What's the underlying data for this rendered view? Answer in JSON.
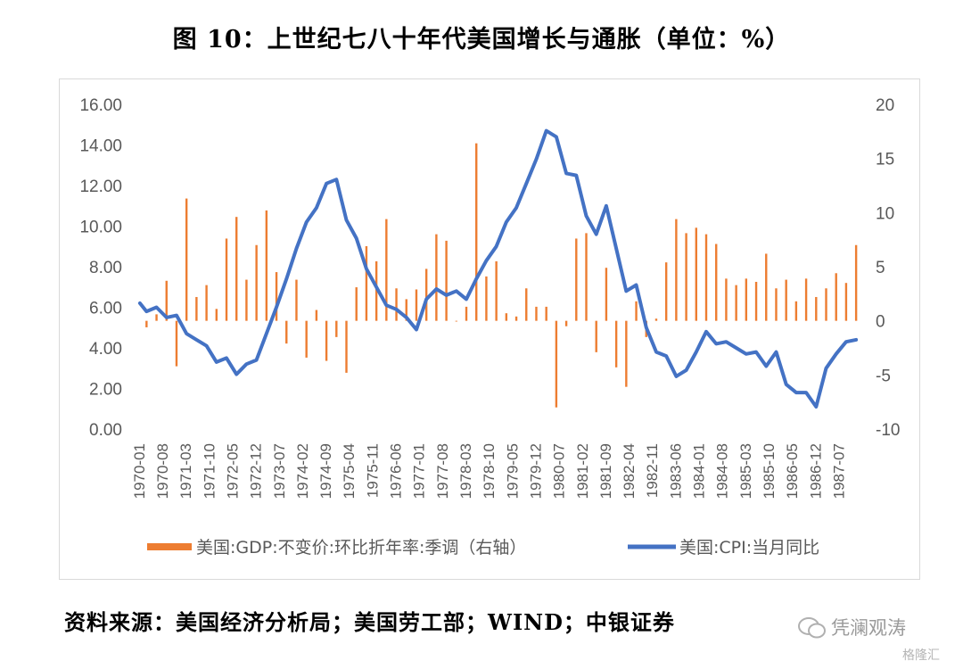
{
  "title": "图 10：上世纪七八十年代美国增长与通胀（单位：%）",
  "source": "资料来源：美国经济分析局；美国劳工部；WIND；中银证券",
  "watermark": "凭澜观涛",
  "watermark_site": "格隆汇",
  "colors": {
    "gdp": "#ED7D31",
    "cpi": "#4472C4",
    "axis_text": "#595959",
    "frame": "#d9d9d9"
  },
  "chart_data": {
    "type": "bar+line",
    "title": "",
    "xlabel": "",
    "ylabel": "",
    "left_axis": {
      "min": 0,
      "max": 16,
      "ticks": [
        "0.00",
        "2.00",
        "4.00",
        "6.00",
        "8.00",
        "10.00",
        "12.00",
        "14.00",
        "16.00"
      ]
    },
    "right_axis": {
      "min": -10,
      "max": 20,
      "ticks": [
        "-10",
        "-5",
        "0",
        "5",
        "10",
        "15",
        "20"
      ]
    },
    "x_ticks": [
      "1970-01",
      "1970-08",
      "1971-03",
      "1971-10",
      "1972-05",
      "1972-12",
      "1973-07",
      "1974-02",
      "1974-09",
      "1975-04",
      "1975-11",
      "1976-06",
      "1977-01",
      "1977-08",
      "1978-03",
      "1978-10",
      "1979-05",
      "1979-12",
      "1980-07",
      "1981-02",
      "1981-09",
      "1982-04",
      "1982-11",
      "1983-06",
      "1984-01",
      "1984-08",
      "1985-03",
      "1985-10",
      "1986-05",
      "1986-12",
      "1987-07"
    ],
    "x_start": "1970-01",
    "x_end": "1987-12",
    "legend_position": "bottom",
    "series": [
      {
        "name": "美国:GDP:不变价:环比折年率:季调（右轴）",
        "type": "bar",
        "axis": "right",
        "x": [
          "1970-03",
          "1970-06",
          "1970-09",
          "1970-12",
          "1971-03",
          "1971-06",
          "1971-09",
          "1971-12",
          "1972-03",
          "1972-06",
          "1972-09",
          "1972-12",
          "1973-03",
          "1973-06",
          "1973-09",
          "1973-12",
          "1974-03",
          "1974-06",
          "1974-09",
          "1974-12",
          "1975-03",
          "1975-06",
          "1975-09",
          "1975-12",
          "1976-03",
          "1976-06",
          "1976-09",
          "1976-12",
          "1977-03",
          "1977-06",
          "1977-09",
          "1977-12",
          "1978-03",
          "1978-06",
          "1978-09",
          "1978-12",
          "1979-03",
          "1979-06",
          "1979-09",
          "1979-12",
          "1980-03",
          "1980-06",
          "1980-09",
          "1980-12",
          "1981-03",
          "1981-06",
          "1981-09",
          "1981-12",
          "1982-03",
          "1982-06",
          "1982-09",
          "1982-12",
          "1983-03",
          "1983-06",
          "1983-09",
          "1983-12",
          "1984-03",
          "1984-06",
          "1984-09",
          "1984-12",
          "1985-03",
          "1985-06",
          "1985-09",
          "1985-12",
          "1986-03",
          "1986-06",
          "1986-09",
          "1986-12",
          "1987-03",
          "1987-06",
          "1987-09",
          "1987-12"
        ],
        "values": [
          -0.6,
          0.6,
          3.7,
          -4.2,
          11.3,
          2.2,
          3.3,
          1.1,
          7.6,
          9.6,
          3.8,
          7.0,
          10.2,
          4.5,
          -2.1,
          3.8,
          -3.4,
          1.0,
          -3.7,
          -1.5,
          -4.8,
          3.1,
          6.9,
          5.5,
          9.4,
          3.0,
          2.0,
          2.9,
          4.8,
          8.0,
          7.4,
          0.0,
          1.3,
          16.4,
          4.1,
          5.5,
          0.7,
          0.4,
          3.0,
          1.3,
          1.3,
          -8.0,
          -0.5,
          7.6,
          8.1,
          -2.9,
          4.9,
          -4.3,
          -6.1,
          1.8,
          -1.5,
          0.2,
          5.4,
          9.4,
          8.1,
          8.6,
          8.0,
          7.1,
          3.9,
          3.3,
          3.9,
          3.6,
          6.2,
          3.0,
          3.8,
          1.8,
          3.9,
          2.2,
          3.0,
          4.4,
          3.5,
          7.0
        ]
      },
      {
        "name": "美国:CPI:当月同比",
        "type": "line",
        "axis": "left",
        "x": [
          "1970-01",
          "1970-03",
          "1970-06",
          "1970-09",
          "1970-12",
          "1971-03",
          "1971-06",
          "1971-09",
          "1971-12",
          "1972-03",
          "1972-06",
          "1972-09",
          "1972-12",
          "1973-03",
          "1973-06",
          "1973-09",
          "1973-12",
          "1974-03",
          "1974-06",
          "1974-09",
          "1974-12",
          "1975-03",
          "1975-06",
          "1975-09",
          "1975-12",
          "1976-03",
          "1976-06",
          "1976-09",
          "1976-12",
          "1977-03",
          "1977-06",
          "1977-09",
          "1977-12",
          "1978-03",
          "1978-06",
          "1978-09",
          "1978-12",
          "1979-03",
          "1979-06",
          "1979-09",
          "1979-12",
          "1980-03",
          "1980-06",
          "1980-09",
          "1980-12",
          "1981-03",
          "1981-06",
          "1981-09",
          "1981-12",
          "1982-03",
          "1982-06",
          "1982-09",
          "1982-12",
          "1983-03",
          "1983-06",
          "1983-09",
          "1983-12",
          "1984-03",
          "1984-06",
          "1984-09",
          "1984-12",
          "1985-03",
          "1985-06",
          "1985-09",
          "1985-12",
          "1986-03",
          "1986-06",
          "1986-09",
          "1986-12",
          "1987-03",
          "1987-06",
          "1987-09",
          "1987-12"
        ],
        "values": [
          6.2,
          5.8,
          6.0,
          5.5,
          5.6,
          4.7,
          4.4,
          4.1,
          3.3,
          3.5,
          2.7,
          3.2,
          3.4,
          4.7,
          6.0,
          7.4,
          8.9,
          10.2,
          10.9,
          12.1,
          12.3,
          10.3,
          9.4,
          7.9,
          7.0,
          6.1,
          5.9,
          5.5,
          4.9,
          6.4,
          6.9,
          6.6,
          6.8,
          6.4,
          7.4,
          8.3,
          9.0,
          10.2,
          10.9,
          12.1,
          13.3,
          14.7,
          14.4,
          12.6,
          12.5,
          10.5,
          9.6,
          11.0,
          8.9,
          6.8,
          7.1,
          5.0,
          3.8,
          3.6,
          2.6,
          2.9,
          3.8,
          4.8,
          4.2,
          4.3,
          4.0,
          3.7,
          3.8,
          3.1,
          3.8,
          2.2,
          1.8,
          1.8,
          1.1,
          3.0,
          3.7,
          4.3,
          4.4
        ]
      }
    ]
  }
}
